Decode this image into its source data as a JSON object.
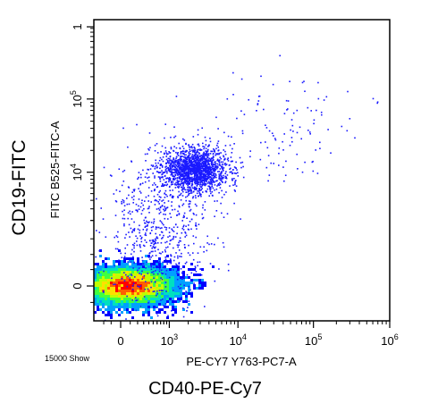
{
  "figure": {
    "outer_ylabel": "CD19-FITC",
    "outer_xlabel": "CD40-PE-Cy7",
    "event_count": "15000 Show"
  },
  "chart_data": {
    "type": "scatter",
    "title": "",
    "xlabel": "PE-CY7 Y763-PC7-A",
    "ylabel": "FITC B525-FITC-A",
    "xscale": "biexponential",
    "yscale": "biexponential",
    "xlim": [
      -500,
      1000000
    ],
    "ylim": [
      -500,
      1000000
    ],
    "x_ticks": [
      {
        "value": 0,
        "base": "0",
        "exp": ""
      },
      {
        "value": 1000,
        "base": "10",
        "exp": "3"
      },
      {
        "value": 10000,
        "base": "10",
        "exp": "4"
      },
      {
        "value": 100000,
        "base": "10",
        "exp": "5"
      },
      {
        "value": 1000000,
        "base": "10",
        "exp": "6"
      }
    ],
    "y_ticks": [
      {
        "value": 0,
        "base": "0",
        "exp": ""
      },
      {
        "value": 10000,
        "base": "10",
        "exp": "4"
      },
      {
        "value": 100000,
        "base": "10",
        "exp": "5"
      }
    ],
    "y_top_tick": "1",
    "grid": false,
    "legend": "none",
    "populations": [
      {
        "name_shown": false,
        "center": [
          80,
          0
        ],
        "spread_x_decades": 0.55,
        "spread_y": 0.35,
        "events": 9000,
        "density_colored": true
      },
      {
        "name_shown": false,
        "center": [
          2500,
          11000
        ],
        "spread_x_decades": 0.35,
        "spread_y_decades": 0.25,
        "events": 1700,
        "density_colored": false
      },
      {
        "name_shown": false,
        "center": [
          600,
          1200
        ],
        "spread_x_decades": 0.6,
        "spread_y_decades": 0.9,
        "events": 700,
        "density_colored": false
      },
      {
        "name_shown": false,
        "center": [
          40000,
          40000
        ],
        "spread_x_decades": 0.9,
        "spread_y_decades": 0.6,
        "events": 120,
        "density_colored": false
      }
    ],
    "dot_color": "#1a1aff",
    "density_colors": [
      "#0000ff",
      "#00a0ff",
      "#00e0c0",
      "#40ff40",
      "#c0ff00",
      "#ffe000",
      "#ff6000",
      "#ff0000"
    ]
  }
}
